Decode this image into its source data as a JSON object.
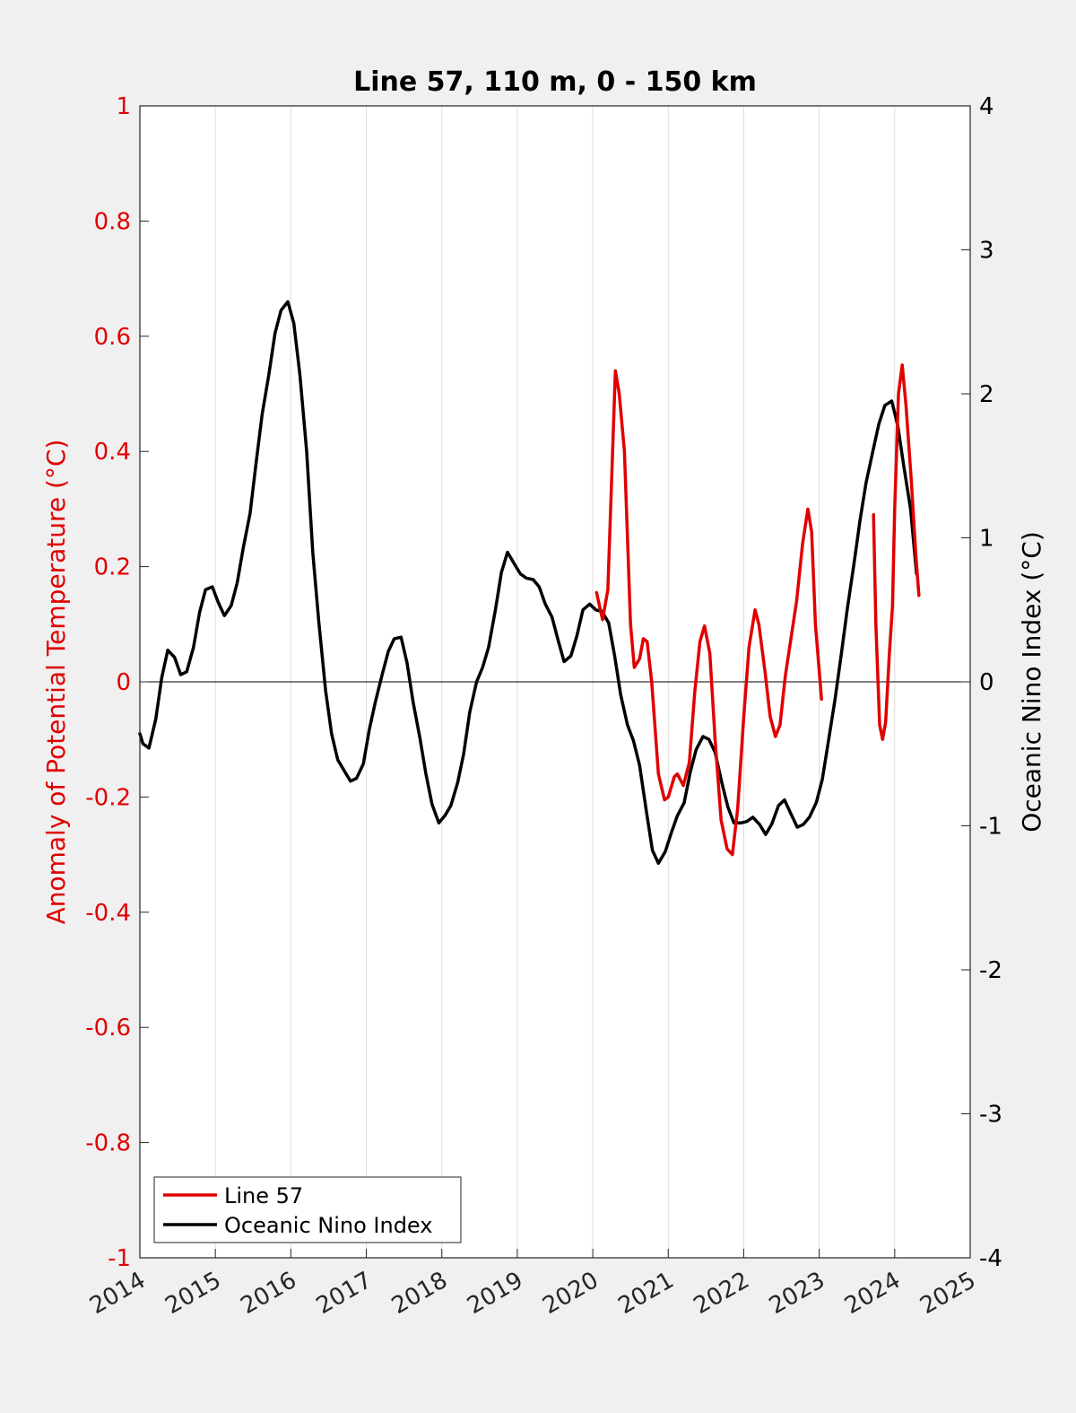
{
  "chart_data": {
    "type": "line",
    "title": "Line 57, 110 m, 0 - 150 km",
    "xlabel": "",
    "ylabel_left": "Anomaly of Potential Temperature (°C)",
    "ylabel_right": "Oceanic Nino Index (°C)",
    "xlim": [
      2014,
      2025
    ],
    "ylim_left": [
      -1,
      1
    ],
    "ylim_right": [
      -4,
      4
    ],
    "x_ticks": [
      "2014",
      "2015",
      "2016",
      "2017",
      "2018",
      "2019",
      "2020",
      "2021",
      "2022",
      "2023",
      "2024",
      "2025"
    ],
    "y_ticks_left": [
      "-1",
      "-0.8",
      "-0.6",
      "-0.4",
      "-0.2",
      "0",
      "0.2",
      "0.4",
      "0.6",
      "0.8",
      "1"
    ],
    "y_ticks_right": [
      "-4",
      "-3",
      "-2",
      "-1",
      "0",
      "1",
      "2",
      "3",
      "4"
    ],
    "grid": "vertical",
    "legend_position": "bottom-left",
    "colors": {
      "line57": "#e00000",
      "oni": "#000000",
      "left_axis": "#e00000",
      "right_axis": "#000000"
    },
    "series": [
      {
        "name": "Line 57",
        "axis": "left",
        "segments": [
          [
            [
              2020.05,
              0.155
            ],
            [
              2020.13,
              0.108
            ],
            [
              2020.2,
              0.16
            ],
            [
              2020.25,
              0.35
            ],
            [
              2020.3,
              0.54
            ],
            [
              2020.35,
              0.5
            ],
            [
              2020.42,
              0.4
            ],
            [
              2020.5,
              0.1
            ],
            [
              2020.55,
              0.025
            ],
            [
              2020.62,
              0.04
            ],
            [
              2020.67,
              0.075
            ],
            [
              2020.72,
              0.07
            ],
            [
              2020.78,
              0.0
            ],
            [
              2020.87,
              -0.16
            ],
            [
              2020.95,
              -0.205
            ],
            [
              2021.0,
              -0.2
            ],
            [
              2021.08,
              -0.165
            ],
            [
              2021.12,
              -0.16
            ],
            [
              2021.2,
              -0.18
            ],
            [
              2021.28,
              -0.14
            ],
            [
              2021.35,
              -0.02
            ],
            [
              2021.42,
              0.07
            ],
            [
              2021.48,
              0.097
            ],
            [
              2021.55,
              0.05
            ],
            [
              2021.62,
              -0.1
            ],
            [
              2021.7,
              -0.24
            ],
            [
              2021.78,
              -0.29
            ],
            [
              2021.85,
              -0.3
            ],
            [
              2021.92,
              -0.22
            ],
            [
              2022.0,
              -0.06
            ],
            [
              2022.07,
              0.06
            ],
            [
              2022.15,
              0.125
            ],
            [
              2022.2,
              0.1
            ],
            [
              2022.28,
              0.02
            ],
            [
              2022.35,
              -0.06
            ],
            [
              2022.42,
              -0.095
            ],
            [
              2022.48,
              -0.075
            ],
            [
              2022.55,
              0.01
            ],
            [
              2022.62,
              0.07
            ],
            [
              2022.7,
              0.14
            ],
            [
              2022.78,
              0.24
            ],
            [
              2022.85,
              0.3
            ],
            [
              2022.9,
              0.26
            ],
            [
              2022.95,
              0.1
            ],
            [
              2023.03,
              -0.03
            ]
          ],
          [
            [
              2023.72,
              0.29
            ],
            [
              2023.75,
              0.1
            ],
            [
              2023.8,
              -0.075
            ],
            [
              2023.84,
              -0.1
            ],
            [
              2023.88,
              -0.07
            ],
            [
              2023.93,
              0.05
            ],
            [
              2023.97,
              0.13
            ],
            [
              2024.0,
              0.3
            ],
            [
              2024.05,
              0.5
            ],
            [
              2024.1,
              0.55
            ],
            [
              2024.15,
              0.48
            ],
            [
              2024.22,
              0.35
            ],
            [
              2024.28,
              0.22
            ],
            [
              2024.32,
              0.15
            ]
          ]
        ]
      },
      {
        "name": "Oceanic Nino Index",
        "axis": "right",
        "segments": [
          [
            [
              2014.0,
              -0.36
            ],
            [
              2014.04,
              -0.43
            ],
            [
              2014.12,
              -0.46
            ],
            [
              2014.21,
              -0.26
            ],
            [
              2014.29,
              0.03
            ],
            [
              2014.37,
              0.22
            ],
            [
              2014.46,
              0.17
            ],
            [
              2014.54,
              0.05
            ],
            [
              2014.62,
              0.07
            ],
            [
              2014.71,
              0.24
            ],
            [
              2014.79,
              0.48
            ],
            [
              2014.87,
              0.64
            ],
            [
              2014.96,
              0.66
            ],
            [
              2015.04,
              0.55
            ],
            [
              2015.12,
              0.46
            ],
            [
              2015.21,
              0.53
            ],
            [
              2015.29,
              0.69
            ],
            [
              2015.37,
              0.93
            ],
            [
              2015.46,
              1.17
            ],
            [
              2015.54,
              1.52
            ],
            [
              2015.62,
              1.86
            ],
            [
              2015.71,
              2.14
            ],
            [
              2015.79,
              2.42
            ],
            [
              2015.87,
              2.58
            ],
            [
              2015.96,
              2.64
            ],
            [
              2016.04,
              2.49
            ],
            [
              2016.12,
              2.13
            ],
            [
              2016.21,
              1.6
            ],
            [
              2016.29,
              0.9
            ],
            [
              2016.37,
              0.42
            ],
            [
              2016.46,
              -0.06
            ],
            [
              2016.54,
              -0.36
            ],
            [
              2016.62,
              -0.54
            ],
            [
              2016.71,
              -0.62
            ],
            [
              2016.79,
              -0.69
            ],
            [
              2016.87,
              -0.67
            ],
            [
              2016.96,
              -0.57
            ],
            [
              2017.04,
              -0.33
            ],
            [
              2017.12,
              -0.14
            ],
            [
              2017.21,
              0.05
            ],
            [
              2017.29,
              0.21
            ],
            [
              2017.37,
              0.3
            ],
            [
              2017.46,
              0.31
            ],
            [
              2017.54,
              0.13
            ],
            [
              2017.62,
              -0.14
            ],
            [
              2017.71,
              -0.39
            ],
            [
              2017.79,
              -0.64
            ],
            [
              2017.87,
              -0.85
            ],
            [
              2017.96,
              -0.98
            ],
            [
              2018.04,
              -0.93
            ],
            [
              2018.12,
              -0.86
            ],
            [
              2018.21,
              -0.7
            ],
            [
              2018.29,
              -0.5
            ],
            [
              2018.37,
              -0.21
            ],
            [
              2018.46,
              0.0
            ],
            [
              2018.54,
              0.1
            ],
            [
              2018.62,
              0.24
            ],
            [
              2018.71,
              0.5
            ],
            [
              2018.79,
              0.76
            ],
            [
              2018.87,
              0.9
            ],
            [
              2018.96,
              0.82
            ],
            [
              2019.04,
              0.75
            ],
            [
              2019.12,
              0.72
            ],
            [
              2019.21,
              0.71
            ],
            [
              2019.29,
              0.66
            ],
            [
              2019.37,
              0.54
            ],
            [
              2019.46,
              0.45
            ],
            [
              2019.54,
              0.29
            ],
            [
              2019.62,
              0.14
            ],
            [
              2019.71,
              0.18
            ],
            [
              2019.79,
              0.32
            ],
            [
              2019.87,
              0.5
            ],
            [
              2019.96,
              0.54
            ],
            [
              2020.04,
              0.5
            ],
            [
              2020.12,
              0.49
            ],
            [
              2020.21,
              0.41
            ],
            [
              2020.29,
              0.18
            ],
            [
              2020.37,
              -0.09
            ],
            [
              2020.46,
              -0.3
            ],
            [
              2020.54,
              -0.41
            ],
            [
              2020.62,
              -0.58
            ],
            [
              2020.71,
              -0.9
            ],
            [
              2020.79,
              -1.17
            ],
            [
              2020.87,
              -1.26
            ],
            [
              2020.96,
              -1.18
            ],
            [
              2021.04,
              -1.05
            ],
            [
              2021.12,
              -0.93
            ],
            [
              2021.21,
              -0.84
            ],
            [
              2021.29,
              -0.63
            ],
            [
              2021.37,
              -0.47
            ],
            [
              2021.46,
              -0.38
            ],
            [
              2021.54,
              -0.4
            ],
            [
              2021.62,
              -0.49
            ],
            [
              2021.71,
              -0.7
            ],
            [
              2021.79,
              -0.87
            ],
            [
              2021.87,
              -0.98
            ],
            [
              2021.96,
              -0.98
            ],
            [
              2022.04,
              -0.97
            ],
            [
              2022.12,
              -0.94
            ],
            [
              2022.21,
              -0.99
            ],
            [
              2022.29,
              -1.06
            ],
            [
              2022.37,
              -0.99
            ],
            [
              2022.46,
              -0.86
            ],
            [
              2022.54,
              -0.82
            ],
            [
              2022.62,
              -0.91
            ],
            [
              2022.71,
              -1.01
            ],
            [
              2022.79,
              -0.99
            ],
            [
              2022.87,
              -0.94
            ],
            [
              2022.96,
              -0.84
            ],
            [
              2023.04,
              -0.68
            ],
            [
              2023.12,
              -0.42
            ],
            [
              2023.21,
              -0.12
            ],
            [
              2023.29,
              0.18
            ],
            [
              2023.37,
              0.5
            ],
            [
              2023.46,
              0.82
            ],
            [
              2023.54,
              1.12
            ],
            [
              2023.62,
              1.38
            ],
            [
              2023.71,
              1.6
            ],
            [
              2023.79,
              1.79
            ],
            [
              2023.87,
              1.92
            ],
            [
              2023.96,
              1.95
            ],
            [
              2024.04,
              1.78
            ],
            [
              2024.12,
              1.5
            ],
            [
              2024.21,
              1.2
            ],
            [
              2024.29,
              0.75
            ]
          ]
        ]
      }
    ]
  }
}
